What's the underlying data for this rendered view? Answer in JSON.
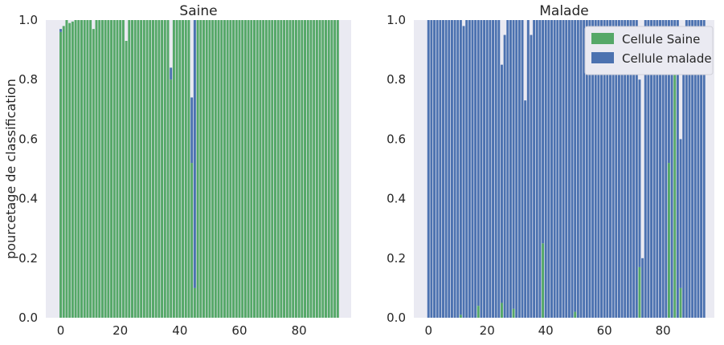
{
  "chart_data": [
    {
      "type": "bar",
      "stacked": true,
      "title": "Saine",
      "xlabel": "",
      "ylabel": "pourcetage de classification",
      "xlim": [
        -5,
        97.5
      ],
      "ylim": [
        0,
        1
      ],
      "x_ticks": [
        0,
        20,
        40,
        60,
        80
      ],
      "y_ticks": [
        0.0,
        0.2,
        0.4,
        0.6,
        0.8,
        1.0
      ],
      "grid": false,
      "series": [
        {
          "color": "#55a868",
          "values": [
            0.96,
            0.98,
            1,
            0.99,
            0.995,
            1,
            1,
            1,
            1,
            1,
            1,
            0.97,
            1,
            1,
            1,
            1,
            1,
            1,
            1,
            1,
            1,
            1,
            0.93,
            1,
            1,
            1,
            1,
            1,
            1,
            1,
            1,
            1,
            1,
            1,
            1,
            1,
            1,
            0.8,
            1,
            1,
            1,
            1,
            1,
            1,
            0.52,
            0.1,
            1,
            1,
            1,
            1,
            1,
            1,
            1,
            1,
            1,
            1,
            1,
            1,
            1,
            1,
            1,
            1,
            1,
            1,
            1,
            1,
            1,
            1,
            1,
            1,
            1,
            1,
            1,
            1,
            1,
            1,
            1,
            1,
            1,
            1,
            1,
            1,
            1,
            1,
            1,
            1,
            1,
            1,
            1,
            1,
            1,
            1,
            1,
            1
          ]
        },
        {
          "color": "#4c72b0",
          "values": [
            0.01,
            0,
            0,
            0,
            0,
            0,
            0,
            0,
            0,
            0,
            0,
            0,
            0,
            0,
            0,
            0,
            0,
            0,
            0,
            0,
            0,
            0,
            0,
            0,
            0,
            0,
            0,
            0,
            0,
            0,
            0,
            0,
            0,
            0,
            0,
            0,
            0,
            0.04,
            0,
            0,
            0,
            0,
            0,
            0,
            0.22,
            0.9,
            0,
            0,
            0,
            0,
            0,
            0,
            0,
            0,
            0,
            0,
            0,
            0,
            0,
            0,
            0,
            0,
            0,
            0,
            0,
            0,
            0,
            0,
            0,
            0,
            0,
            0,
            0,
            0,
            0,
            0,
            0,
            0,
            0,
            0,
            0,
            0,
            0,
            0,
            0,
            0,
            0,
            0,
            0,
            0,
            0,
            0,
            0,
            0
          ]
        }
      ]
    },
    {
      "type": "bar",
      "stacked": true,
      "title": "Malade",
      "xlabel": "",
      "ylabel": "",
      "xlim": [
        -5,
        97.5
      ],
      "ylim": [
        0,
        1
      ],
      "x_ticks": [
        0,
        20,
        40,
        60,
        80
      ],
      "y_ticks": [
        0.0,
        0.2,
        0.4,
        0.6,
        0.8,
        1.0
      ],
      "grid": false,
      "legend_position": "top-right",
      "series": [
        {
          "name": "Cellule Saine",
          "color": "#55a868",
          "values": [
            0,
            0,
            0,
            0,
            0,
            0,
            0,
            0,
            0,
            0,
            0,
            0.01,
            0,
            0,
            0,
            0,
            0,
            0.04,
            0,
            0,
            0,
            0,
            0,
            0,
            0,
            0.05,
            0,
            0,
            0,
            0.03,
            0,
            0,
            0,
            0,
            0,
            0,
            0,
            0,
            0,
            0.25,
            0,
            0,
            0,
            0,
            0,
            0,
            0,
            0,
            0,
            0,
            0.02,
            0,
            0,
            0,
            0,
            0,
            0,
            0,
            0,
            0,
            0,
            0,
            0,
            0,
            0,
            0,
            0,
            0,
            0,
            0,
            0,
            0,
            0.17,
            0,
            0,
            0,
            0,
            0,
            0,
            0,
            0,
            0,
            0.52,
            0,
            0.82,
            0,
            0.1,
            0,
            0,
            0,
            0,
            0,
            0,
            0,
            0
          ]
        },
        {
          "name": "Cellule malade",
          "color": "#4c72b0",
          "values": [
            1,
            1,
            1,
            1,
            1,
            1,
            1,
            1,
            1,
            1,
            1,
            0.99,
            0.98,
            1,
            1,
            1,
            1,
            0.96,
            1,
            1,
            1,
            1,
            1,
            1,
            1,
            0.8,
            0.95,
            1,
            1,
            0.97,
            1,
            1,
            1,
            0.73,
            1,
            0.95,
            1,
            1,
            1,
            0.75,
            1,
            1,
            1,
            1,
            1,
            1,
            1,
            1,
            1,
            1,
            0.98,
            1,
            1,
            1,
            1,
            1,
            1,
            1,
            1,
            1,
            1,
            1,
            1,
            1,
            1,
            1,
            1,
            1,
            1,
            1,
            1,
            1,
            0.63,
            0.2,
            1,
            1,
            1,
            1,
            1,
            1,
            1,
            1,
            0.48,
            1,
            0.18,
            1,
            0.5,
            0.9,
            1,
            1,
            1,
            1,
            1,
            1,
            1
          ]
        }
      ]
    }
  ]
}
